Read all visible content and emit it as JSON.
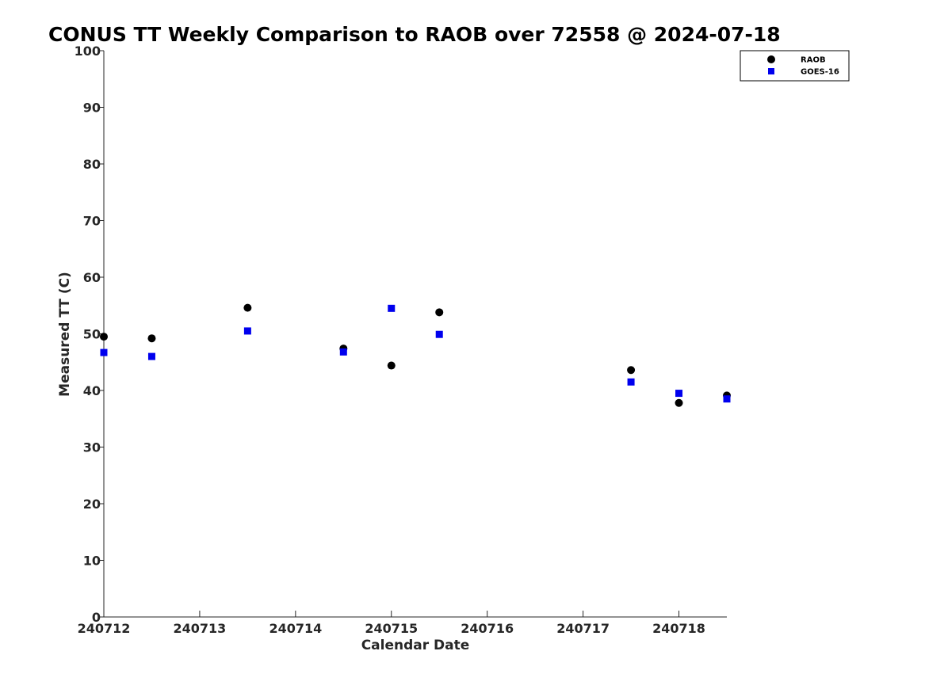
{
  "chart_data": {
    "type": "scatter",
    "title": "CONUS TT Weekly Comparison to RAOB over 72558 @ 2024-07-18",
    "xlabel": "Calendar Date",
    "ylabel": "Measured TT (C)",
    "xlim": [
      240712,
      240718.5
    ],
    "ylim": [
      0,
      100
    ],
    "x_ticks": [
      240712,
      240713,
      240714,
      240715,
      240716,
      240717,
      240718
    ],
    "x_tick_labels": [
      "240712",
      "240713",
      "240714",
      "240715",
      "240716",
      "240717",
      "240718"
    ],
    "y_ticks": [
      0,
      10,
      20,
      30,
      40,
      50,
      60,
      70,
      80,
      90,
      100
    ],
    "y_tick_labels": [
      "0",
      "10",
      "20",
      "30",
      "40",
      "50",
      "60",
      "70",
      "80",
      "90",
      "100"
    ],
    "grid": false,
    "legend_position": "top-right",
    "series": [
      {
        "name": "RAOB",
        "marker": "circle",
        "color": "#000000",
        "x": [
          240712,
          240712.5,
          240713.5,
          240714.5,
          240715,
          240715.5,
          240717.5,
          240718,
          240718.5
        ],
        "y": [
          49.5,
          49.2,
          54.6,
          47.4,
          44.4,
          53.8,
          43.6,
          37.8,
          39.1
        ]
      },
      {
        "name": "GOES-16",
        "marker": "square",
        "color": "#0000ee",
        "x": [
          240712,
          240712.5,
          240713.5,
          240714.5,
          240715,
          240715.5,
          240717.5,
          240718,
          240718.5
        ],
        "y": [
          46.7,
          46.0,
          50.5,
          46.8,
          54.5,
          49.9,
          41.5,
          39.5,
          38.5
        ]
      }
    ]
  }
}
